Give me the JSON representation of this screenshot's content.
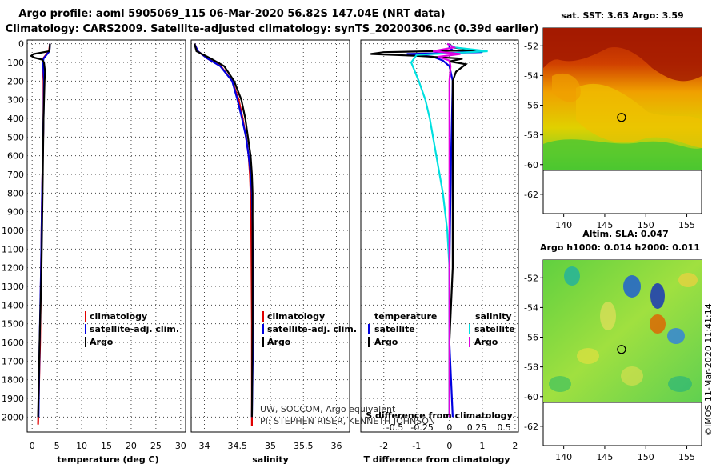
{
  "titles": {
    "line1": "Argo profile: aoml 5905069_115 06-Mar-2020 56.82S 147.04E (NRT data)",
    "line2": "Climatology: CARS2009. Satellite-adjusted climatology: synTS_20200306.nc (0.39d earlier)"
  },
  "colors": {
    "climatology": "#e00000",
    "satellite": "#0000e0",
    "argo": "#000000",
    "sal_sat": "#00e0e0",
    "sal_argo": "#e000e0"
  },
  "depth_ticks": [
    0,
    100,
    200,
    300,
    400,
    500,
    600,
    700,
    800,
    900,
    1000,
    1100,
    1200,
    1300,
    1400,
    1500,
    1600,
    1700,
    1800,
    1900,
    2000
  ],
  "chart_data": [
    {
      "type": "line",
      "panel": "temperature",
      "xlabel": "temperature (deg C)",
      "ylabel": "",
      "xlim": [
        -1,
        31
      ],
      "ylim": [
        2080,
        -20
      ],
      "xticks": [
        0,
        5,
        10,
        15,
        20,
        25,
        30
      ],
      "legend": {
        "climatology": "climatology",
        "satellite": "satellite-adj. clim.",
        "argo": "Argo"
      },
      "series": [
        {
          "name": "climatology",
          "depth": [
            0,
            40,
            60,
            80,
            100,
            150,
            200,
            400,
            800,
            1200,
            1600,
            2040
          ],
          "values": [
            3.6,
            3.4,
            2.8,
            2.2,
            2.1,
            2.2,
            2.3,
            2.3,
            2.0,
            1.8,
            1.6,
            1.2
          ]
        },
        {
          "name": "satellite-adj. clim.",
          "depth": [
            0,
            40,
            60,
            80,
            100,
            150,
            200,
            400,
            800,
            1200,
            1600,
            2000
          ],
          "values": [
            3.6,
            3.5,
            2.9,
            2.3,
            2.2,
            2.3,
            2.4,
            2.3,
            2.0,
            1.8,
            1.5,
            1.3
          ]
        },
        {
          "name": "Argo",
          "depth": [
            0,
            40,
            55,
            65,
            75,
            85,
            100,
            150,
            200,
            400,
            800,
            1200,
            1600,
            2000
          ],
          "values": [
            3.6,
            3.5,
            0.3,
            -0.2,
            0.5,
            2.0,
            2.4,
            2.6,
            2.5,
            2.3,
            2.1,
            1.9,
            1.5,
            1.2
          ]
        }
      ]
    },
    {
      "type": "line",
      "panel": "salinity",
      "xlabel": "salinity",
      "ylabel": "",
      "xlim": [
        33.8,
        36.2
      ],
      "ylim": [
        2080,
        -20
      ],
      "xticks": [
        34,
        34.5,
        35,
        35.5,
        36
      ],
      "legend": {
        "climatology": "climatology",
        "satellite": "satellite-adj. clim.",
        "argo": "Argo"
      },
      "series": [
        {
          "name": "climatology",
          "depth": [
            0,
            40,
            80,
            120,
            200,
            300,
            400,
            500,
            600,
            700,
            800,
            1000,
            1500,
            2050
          ],
          "values": [
            33.85,
            33.9,
            34.05,
            34.25,
            34.42,
            34.52,
            34.58,
            34.63,
            34.67,
            34.69,
            34.7,
            34.71,
            34.72,
            34.72
          ]
        },
        {
          "name": "satellite-adj. clim.",
          "depth": [
            0,
            40,
            80,
            120,
            200,
            300,
            400,
            500,
            600,
            700,
            800,
            1000,
            1500,
            2000
          ],
          "values": [
            33.85,
            33.9,
            34.05,
            34.24,
            34.42,
            34.5,
            34.57,
            34.63,
            34.67,
            34.7,
            34.72,
            34.73,
            34.74,
            34.72
          ]
        },
        {
          "name": "Argo",
          "depth": [
            0,
            40,
            80,
            120,
            200,
            300,
            400,
            500,
            600,
            700,
            800,
            1000,
            1500,
            2000
          ],
          "values": [
            33.85,
            33.88,
            34.1,
            34.3,
            34.45,
            34.56,
            34.62,
            34.66,
            34.7,
            34.72,
            34.73,
            34.73,
            34.73,
            34.72
          ]
        }
      ]
    },
    {
      "type": "line",
      "panel": "difference",
      "xlabel": "T difference from climatology",
      "ylabel": "",
      "xlim": [
        -2.7,
        2.1
      ],
      "ylim": [
        2080,
        -20
      ],
      "xticks": [
        -2,
        -1,
        0,
        1,
        2
      ],
      "xlabel2": "S difference from climatology",
      "xticks2": [
        -0.5,
        -0.25,
        0,
        0.25,
        0.5
      ],
      "legend": {
        "title_t": "temperature",
        "title_s": "salinity",
        "satellite": "satellite",
        "argo": "Argo"
      },
      "series": [
        {
          "name": "T satellite",
          "depth": [
            0,
            20,
            35,
            45,
            55,
            70,
            90,
            120,
            200,
            600,
            1200,
            1600,
            2000
          ],
          "values": [
            0.0,
            0.0,
            0.1,
            1.0,
            -1.3,
            -0.5,
            -0.2,
            0.0,
            0.1,
            0.05,
            0.0,
            0.0,
            0.1
          ]
        },
        {
          "name": "T Argo",
          "depth": [
            0,
            20,
            35,
            45,
            55,
            65,
            80,
            95,
            110,
            150,
            200,
            600,
            1200,
            1600,
            2000
          ],
          "values": [
            0.0,
            0.1,
            0.8,
            -2.0,
            -2.4,
            -1.0,
            0.4,
            0.0,
            0.5,
            0.2,
            0.1,
            0.1,
            0.1,
            0.0,
            0.0
          ]
        },
        {
          "name": "S satellite",
          "depth": [
            0,
            20,
            40,
            60,
            100,
            200,
            300,
            400,
            600,
            800,
            1000,
            1200,
            1500,
            2000
          ],
          "values": [
            -0.02,
            0.05,
            0.35,
            -0.3,
            -0.35,
            -0.28,
            -0.22,
            -0.18,
            -0.12,
            -0.06,
            -0.02,
            0.0,
            0.0,
            0.0
          ]
        },
        {
          "name": "S Argo",
          "depth": [
            0,
            20,
            40,
            55,
            70,
            90,
            120,
            200,
            600,
            1000,
            1500,
            2000
          ],
          "values": [
            -0.02,
            0.04,
            -0.15,
            0.1,
            -0.1,
            0.0,
            0.01,
            0.0,
            0.0,
            0.0,
            0.0,
            0.0
          ]
        }
      ]
    }
  ],
  "credits": {
    "line1": "UW, SOCCOM, Argo equivalent",
    "line2": "PI: STEPHEN RISER, KENNETH JOHNSON"
  },
  "maps": {
    "sst": {
      "title": "sat. SST: 3.63 Argo: 3.59",
      "lat_ticks": [
        -52,
        -54,
        -56,
        -58,
        -60,
        -62
      ],
      "lon_ticks": [
        140,
        145,
        150,
        155
      ]
    },
    "sla": {
      "title1": "Altim. SLA: 0.047",
      "title2": "Argo h1000: 0.014 h2000: 0.011",
      "lat_ticks": [
        -52,
        -54,
        -56,
        -58,
        -60,
        -62
      ],
      "lon_ticks": [
        140,
        145,
        150,
        155
      ]
    },
    "float_position": {
      "lon": 147.04,
      "lat": -56.82
    },
    "stamp": "©IMOS 11-Mar-2020 11:41:14"
  }
}
